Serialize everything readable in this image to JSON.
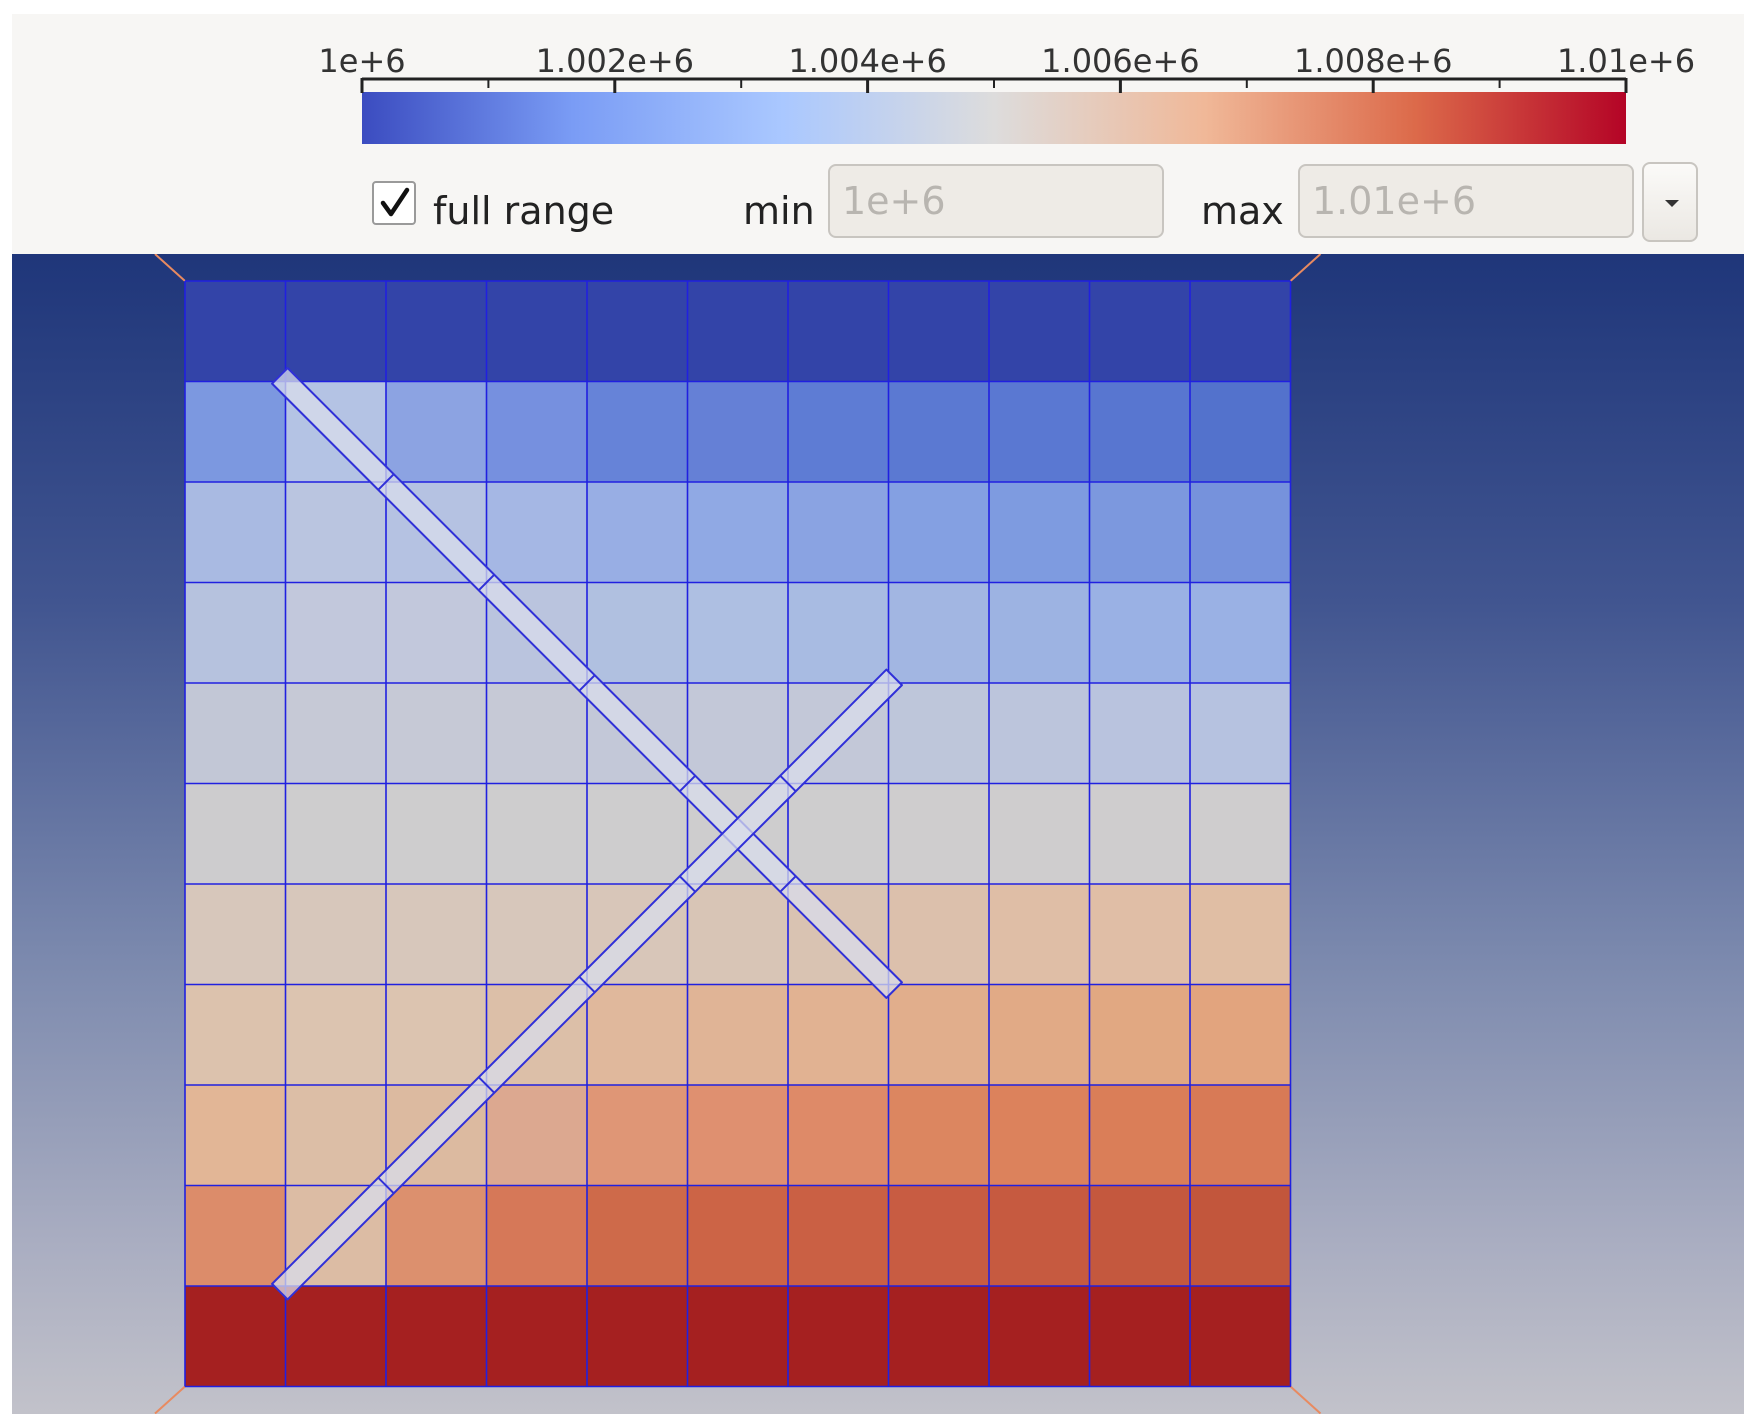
{
  "colorbar": {
    "ticks": [
      "1e+6",
      "1.002e+6",
      "1.004e+6",
      "1.006e+6",
      "1.008e+6",
      "1.01e+6"
    ],
    "min_value": 1000000,
    "max_value": 1010000,
    "minor_ticks_per_interval": 2,
    "colormap_stops": [
      "#3b4cc0",
      "#7a9cf5",
      "#aac8ff",
      "#dddcdc",
      "#f0b898",
      "#dc6a4a",
      "#b40426"
    ]
  },
  "controls": {
    "full_range": {
      "label": "full range",
      "checked": true
    },
    "min": {
      "label": "min",
      "placeholder": "1e+6"
    },
    "max": {
      "label": "max",
      "placeholder": "1.01e+6"
    },
    "dropdown_icon": "chevron-down-icon"
  },
  "mesh": {
    "rows": 11,
    "cols": 11,
    "grid_line_color": "#2020e0",
    "row_colors": [
      [
        "#3344a8",
        "#3344a8",
        "#3344a8",
        "#3344a8",
        "#3344a8",
        "#3344a8",
        "#3344a8",
        "#3344a8",
        "#3344a8",
        "#3344a8",
        "#3344a8"
      ],
      [
        "#7c98e0",
        "#b4c3e4",
        "#8ca3e2",
        "#7690df",
        "#6683d8",
        "#6580d6",
        "#5e7cd4",
        "#5b79d2",
        "#5a78d2",
        "#5876d0",
        "#5372cc"
      ],
      [
        "#a9bae2",
        "#bac5e0",
        "#b5c2e2",
        "#a5b7e4",
        "#98aee4",
        "#90a9e4",
        "#8aa3e2",
        "#84a0e2",
        "#7e9be0",
        "#7c98de",
        "#7692dc"
      ],
      [
        "#b6c2de",
        "#c2c8dc",
        "#c2c8dc",
        "#bac4de",
        "#b0c0e0",
        "#aebfe2",
        "#a8bbe2",
        "#a2b6e2",
        "#9db3e2",
        "#9ab1e4",
        "#9ab1e4"
      ],
      [
        "#c2c7d6",
        "#c6c9d6",
        "#c6c9d6",
        "#c6c9d6",
        "#c3c8d8",
        "#c3c8d8",
        "#c3c8d8",
        "#bec6da",
        "#bcc5dc",
        "#b9c3de",
        "#b6c2e0"
      ],
      [
        "#cdccce",
        "#cecdce",
        "#cecdce",
        "#cecdce",
        "#cecdce",
        "#cecdce",
        "#cecdce",
        "#cfcdce",
        "#cfcdce",
        "#cfcdce",
        "#cfcdce"
      ],
      [
        "#d7c7bb",
        "#d7c7bb",
        "#d7c7bb",
        "#d7c7bb",
        "#d8c6b9",
        "#d8c5b6",
        "#d9c3b2",
        "#dcc0ac",
        "#dfbea6",
        "#e0bea6",
        "#e0bea4"
      ],
      [
        "#dcc2ad",
        "#dcc4b0",
        "#dcc4b0",
        "#dcbfa8",
        "#e0b89c",
        "#e0b496",
        "#e1b292",
        "#e1ae8c",
        "#e1aa86",
        "#e1a882",
        "#e2a47e"
      ],
      [
        "#e2b696",
        "#dcbea6",
        "#dcbaa0",
        "#dca890",
        "#df9676",
        "#df9070",
        "#de8a68",
        "#dc8660",
        "#dc825c",
        "#da7e58",
        "#d87a56"
      ],
      [
        "#dc8c6a",
        "#dcbca4",
        "#dc906e",
        "#d67858",
        "#ce6a4a",
        "#cc6446",
        "#ca6044",
        "#c85c42",
        "#c65a40",
        "#c4583e",
        "#c2563c"
      ],
      [
        "#a52020",
        "#a52020",
        "#a52020",
        "#a52020",
        "#a52020",
        "#a52020",
        "#a52020",
        "#a52020",
        "#a52020",
        "#a52020",
        "#a52020"
      ]
    ],
    "fracture_1": {
      "from": [
        1,
        1
      ],
      "to": [
        7,
        7
      ],
      "segments": 6
    },
    "fracture_2": {
      "from": [
        1,
        10
      ],
      "to": [
        7,
        4
      ],
      "segments": 6
    },
    "fracture_fill": "#d8dceb",
    "fracture_stroke": "#3030d8"
  }
}
